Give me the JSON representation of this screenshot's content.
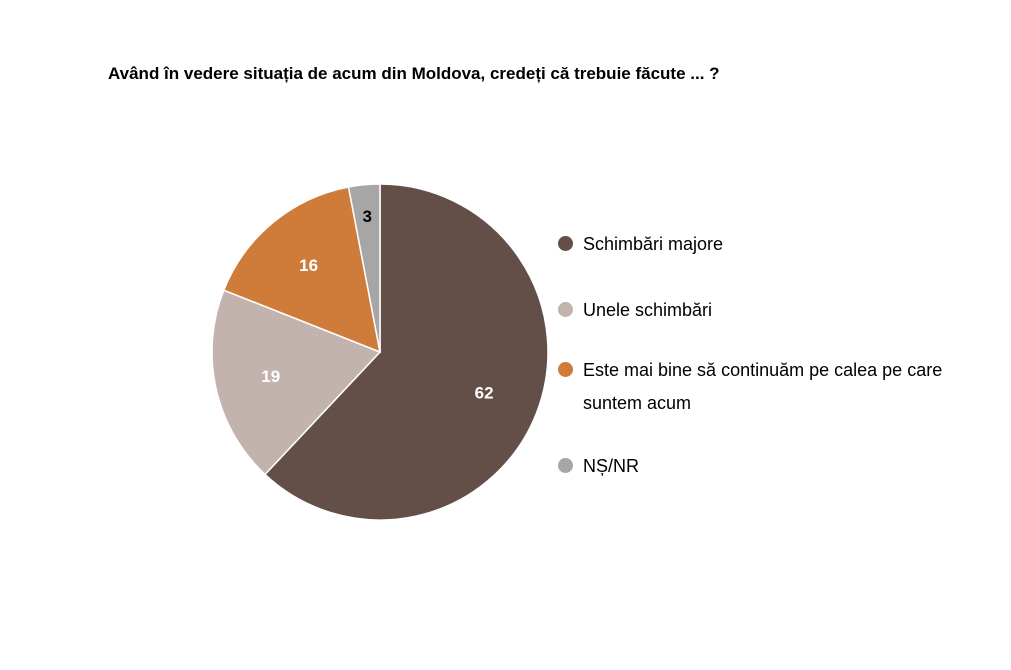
{
  "chart_data": {
    "type": "pie",
    "title": "Având în vedere situația de acum din Moldova, credeți că trebuie făcute ... ?",
    "series": [
      {
        "name": "Schimbări majore",
        "value": 62,
        "label": "62",
        "color": "#634f48",
        "label_color": "#ffffff"
      },
      {
        "name": "Unele schimbări",
        "value": 19,
        "label": "19",
        "color": "#c3b3ae",
        "label_color": "#ffffff"
      },
      {
        "name": "Este mai bine să continuăm pe calea pe care suntem acum",
        "value": 16,
        "label": "16",
        "color": "#cf7c3a",
        "label_color": "#ffffff"
      },
      {
        "name": "NȘ/NR",
        "value": 3,
        "label": "3",
        "color": "#a6a6a6",
        "label_color": "#000000"
      }
    ],
    "legend_position": "right"
  }
}
